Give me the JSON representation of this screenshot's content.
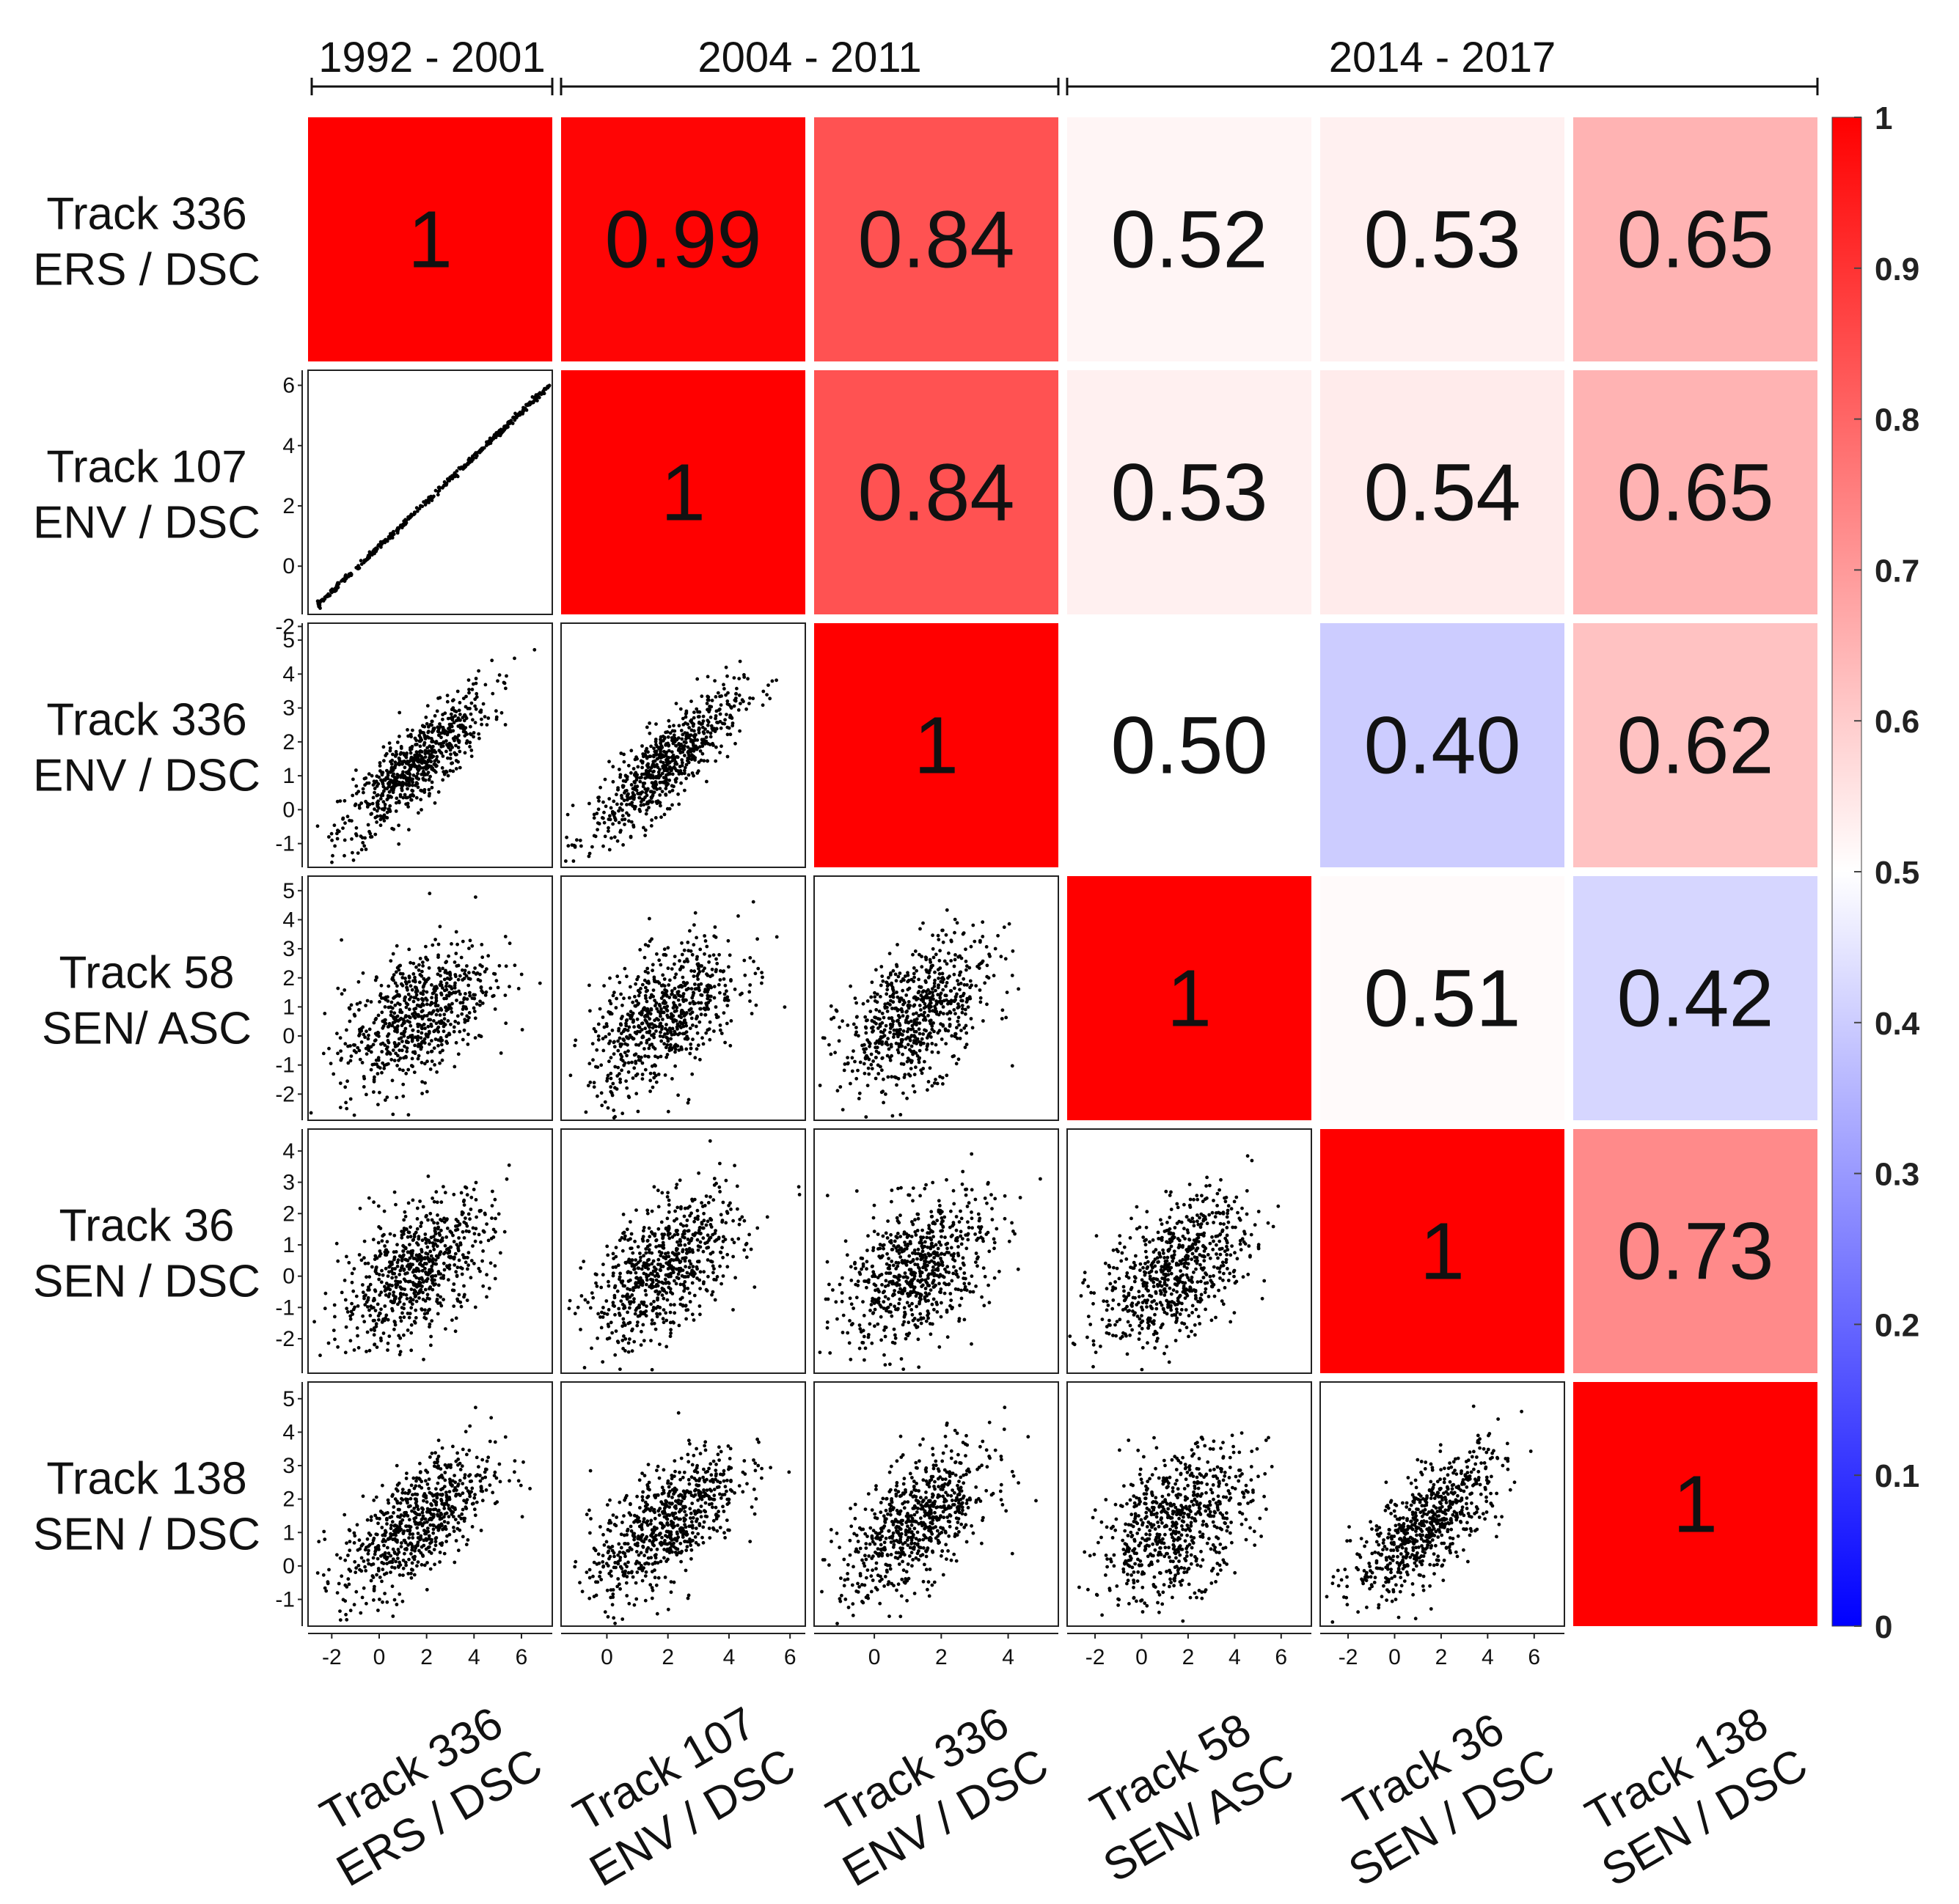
{
  "chart_data": {
    "type": "heatmap",
    "title": "",
    "periods": [
      {
        "label": "1992 - 2001",
        "span": [
          0,
          0
        ]
      },
      {
        "label": "2004 - 2011",
        "span": [
          1,
          2
        ]
      },
      {
        "label": "2014 - 2017",
        "span": [
          3,
          5
        ]
      }
    ],
    "variables": [
      {
        "line1": "Track 336",
        "line2": "ERS / DSC"
      },
      {
        "line1": "Track 107",
        "line2": "ENV / DSC"
      },
      {
        "line1": "Track 336",
        "line2": "ENV / DSC"
      },
      {
        "line1": "Track 58",
        "line2": "SEN/ ASC"
      },
      {
        "line1": "Track 36",
        "line2": "SEN / DSC"
      },
      {
        "line1": "Track 138",
        "line2": "SEN / DSC"
      }
    ],
    "correlation_matrix": [
      [
        1,
        0.99,
        0.84,
        0.52,
        0.53,
        0.65
      ],
      [
        null,
        1,
        0.84,
        0.53,
        0.54,
        0.65
      ],
      [
        null,
        null,
        1,
        0.5,
        0.4,
        0.62
      ],
      [
        null,
        null,
        null,
        1,
        0.51,
        0.42
      ],
      [
        null,
        null,
        null,
        null,
        1,
        0.73
      ],
      [
        null,
        null,
        null,
        null,
        null,
        1
      ]
    ],
    "cell_labels": [
      [
        "1",
        "0.99",
        "0.84",
        "0.52",
        "0.53",
        "0.65"
      ],
      [
        "",
        "1",
        "0.84",
        "0.53",
        "0.54",
        "0.65"
      ],
      [
        "",
        "",
        "1",
        "0.50",
        "0.40",
        "0.62"
      ],
      [
        "",
        "",
        "",
        "1",
        "0.51",
        "0.42"
      ],
      [
        "",
        "",
        "",
        "",
        "1",
        "0.73"
      ],
      [
        "",
        "",
        "",
        "",
        "",
        "1"
      ]
    ],
    "lower_triangle": "scatter",
    "axis_ranges": [
      [
        -3,
        7.3
      ],
      [
        -1.5,
        6.5
      ],
      [
        -1.8,
        5.5
      ],
      [
        -3.2,
        7.3
      ],
      [
        -3.2,
        7.3
      ],
      [
        -3,
        7
      ]
    ],
    "y_axis_ranges": [
      [
        -3.3,
        7.3
      ],
      [
        -1.6,
        6.5
      ],
      [
        -1.7,
        5.5
      ],
      [
        -2.9,
        5.5
      ],
      [
        -3.1,
        4.7
      ],
      [
        -1.8,
        5.5
      ]
    ],
    "x_ticks": [
      [
        "-2",
        "0",
        "2",
        "4",
        "6"
      ],
      [
        "0",
        "2",
        "4",
        "6"
      ],
      [
        "0",
        "2",
        "4"
      ],
      [
        "-2",
        "0",
        "2",
        "4",
        "6"
      ],
      [
        "-2",
        "0",
        "2",
        "4",
        "6"
      ]
    ],
    "y_ticks": [
      [],
      [
        "6",
        "4",
        "2",
        "0",
        "-2"
      ],
      [
        "5",
        "4",
        "3",
        "2",
        "1",
        "0",
        "-1"
      ],
      [
        "5",
        "4",
        "3",
        "2",
        "1",
        "0",
        "-1",
        "-2"
      ],
      [
        "4",
        "3",
        "2",
        "1",
        "0",
        "-1",
        "-2"
      ],
      [
        "5",
        "4",
        "3",
        "2",
        "1",
        "0",
        "-1"
      ]
    ],
    "colorbar": {
      "min": 0,
      "max": 1,
      "ticks": [
        "0",
        "0.1",
        "0.2",
        "0.3",
        "0.4",
        "0.5",
        "0.6",
        "0.7",
        "0.8",
        "0.9",
        "1"
      ],
      "low_color": "#0000ff",
      "mid_color": "#ffffff",
      "high_color": "#ff0000"
    },
    "point_color": "#000000"
  }
}
